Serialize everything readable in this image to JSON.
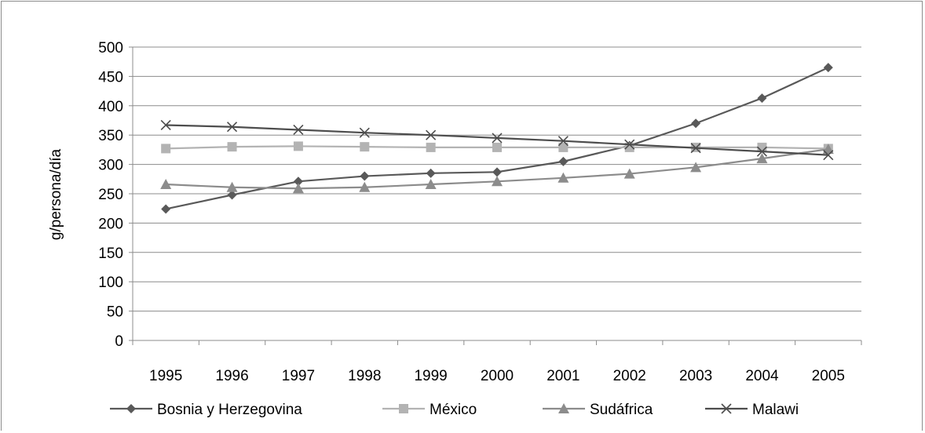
{
  "chart_data": {
    "type": "line",
    "ylabel": "g/persona/día",
    "ylim": [
      0,
      500
    ],
    "y_ticks": [
      0,
      50,
      100,
      150,
      200,
      250,
      300,
      350,
      400,
      450,
      500
    ],
    "grid": true,
    "legend_position": "bottom",
    "categories": [
      "1995",
      "1996",
      "1997",
      "1998",
      "1999",
      "2000",
      "2001",
      "2002",
      "2003",
      "2004",
      "2005"
    ],
    "series": [
      {
        "name": "Bosnia y Herzegovina",
        "marker": "diamond",
        "color": "#595959",
        "values": [
          224,
          248,
          271,
          280,
          285,
          287,
          305,
          332,
          370,
          413,
          465
        ]
      },
      {
        "name": "México",
        "marker": "square",
        "color": "#b3b3b3",
        "values": [
          327,
          330,
          331,
          330,
          329,
          329,
          329,
          329,
          329,
          329,
          327
        ]
      },
      {
        "name": "Sudáfrica",
        "marker": "triangle",
        "color": "#8c8c8c",
        "values": [
          266,
          261,
          259,
          261,
          266,
          271,
          277,
          284,
          295,
          310,
          326
        ]
      },
      {
        "name": "Malawi",
        "marker": "x",
        "color": "#4d4d4d",
        "values": [
          367,
          364,
          359,
          354,
          350,
          345,
          340,
          334,
          328,
          322,
          316
        ]
      }
    ]
  }
}
